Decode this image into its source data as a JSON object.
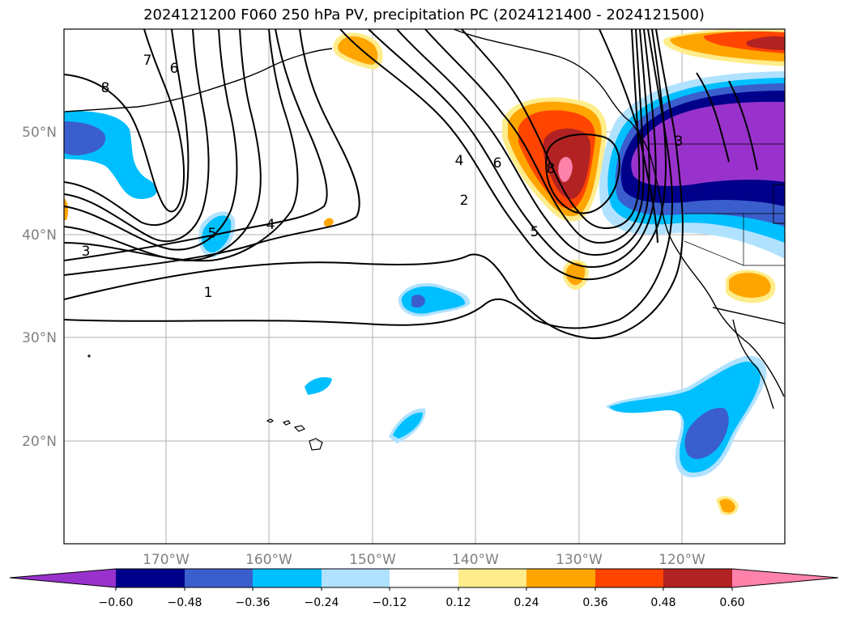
{
  "title": "2024121200 F060 250 hPa PV, precipitation PC (2024121400 - 2024121500)",
  "lat_labels": [
    "50°N",
    "40°N",
    "30°N",
    "20°N"
  ],
  "lon_labels": [
    "170°W",
    "160°W",
    "150°W",
    "140°W",
    "130°W",
    "120°W"
  ],
  "colorbar": {
    "ticks": [
      "−0.60",
      "−0.48",
      "−0.36",
      "−0.24",
      "−0.12",
      "0.12",
      "0.24",
      "0.36",
      "0.48",
      "0.60"
    ],
    "colors": [
      "#9932cc",
      "#00008b",
      "#3a5fcd",
      "#00bfff",
      "#b0e2ff",
      "#ffffff",
      "#ffec8b",
      "#ffa500",
      "#ff4500",
      "#b22222",
      "#ff82ab"
    ]
  },
  "contour_labels": [
    "8",
    "7",
    "6",
    "5",
    "4",
    "3",
    "1",
    "4",
    "6",
    "2",
    "8",
    "5",
    "3"
  ]
}
